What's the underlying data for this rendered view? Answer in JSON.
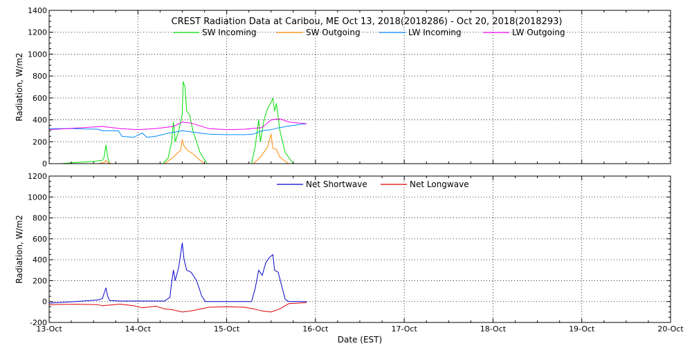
{
  "chart_data": {
    "type": "line",
    "title": "CREST Radiation Data at Caribou, ME   Oct 13, 2018(2018286) - Oct 20, 2018(2018293)",
    "xlabel": "Date (EST)",
    "x_tick_labels": [
      "13-Oct",
      "14-Oct",
      "15-Oct",
      "16-Oct",
      "17-Oct",
      "18-Oct",
      "19-Oct",
      "20-Oct"
    ],
    "xlim": [
      0,
      7
    ],
    "grid": true,
    "panels": [
      {
        "ylabel": "Radiation, W/m2",
        "ylim": [
          0,
          1400
        ],
        "y_ticks": [
          0,
          200,
          400,
          600,
          800,
          1000,
          1200,
          1400
        ],
        "legend_position": "top",
        "series": [
          {
            "name": "SW Incoming",
            "color": "#00dd00",
            "points": [
              [
                0.13,
                0
              ],
              [
                0.3,
                10
              ],
              [
                0.5,
                20
              ],
              [
                0.6,
                30
              ],
              [
                0.62,
                60
              ],
              [
                0.64,
                170
              ],
              [
                0.66,
                60
              ],
              [
                0.68,
                0
              ],
              [
                1.28,
                0
              ],
              [
                1.34,
                50
              ],
              [
                1.38,
                200
              ],
              [
                1.4,
                380
              ],
              [
                1.42,
                200
              ],
              [
                1.46,
                300
              ],
              [
                1.5,
                450
              ],
              [
                1.51,
                750
              ],
              [
                1.53,
                700
              ],
              [
                1.55,
                480
              ],
              [
                1.58,
                450
              ],
              [
                1.62,
                300
              ],
              [
                1.7,
                100
              ],
              [
                1.78,
                0
              ],
              [
                2.28,
                0
              ],
              [
                2.32,
                150
              ],
              [
                2.36,
                400
              ],
              [
                2.38,
                200
              ],
              [
                2.42,
                400
              ],
              [
                2.46,
                500
              ],
              [
                2.5,
                560
              ],
              [
                2.52,
                600
              ],
              [
                2.54,
                480
              ],
              [
                2.56,
                550
              ],
              [
                2.6,
                300
              ],
              [
                2.66,
                100
              ],
              [
                2.75,
                0
              ]
            ]
          },
          {
            "name": "SW Outgoing",
            "color": "#ff8800",
            "points": [
              [
                0.55,
                0
              ],
              [
                0.62,
                10
              ],
              [
                0.64,
                30
              ],
              [
                0.66,
                10
              ],
              [
                0.7,
                0
              ],
              [
                1.3,
                0
              ],
              [
                1.4,
                60
              ],
              [
                1.45,
                100
              ],
              [
                1.48,
                120
              ],
              [
                1.5,
                220
              ],
              [
                1.52,
                160
              ],
              [
                1.56,
                120
              ],
              [
                1.62,
                90
              ],
              [
                1.7,
                30
              ],
              [
                1.75,
                0
              ],
              [
                2.3,
                0
              ],
              [
                2.38,
                60
              ],
              [
                2.46,
                150
              ],
              [
                2.5,
                270
              ],
              [
                2.52,
                140
              ],
              [
                2.56,
                130
              ],
              [
                2.6,
                60
              ],
              [
                2.66,
                20
              ],
              [
                2.7,
                0
              ]
            ]
          },
          {
            "name": "LW Incoming",
            "color": "#0088ff",
            "points": [
              [
                0,
                320
              ],
              [
                0.25,
                320
              ],
              [
                0.55,
                315
              ],
              [
                0.6,
                300
              ],
              [
                0.78,
                300
              ],
              [
                0.82,
                250
              ],
              [
                0.95,
                240
              ],
              [
                1.0,
                260
              ],
              [
                1.05,
                280
              ],
              [
                1.1,
                240
              ],
              [
                1.2,
                250
              ],
              [
                1.35,
                280
              ],
              [
                1.5,
                300
              ],
              [
                1.6,
                290
              ],
              [
                1.8,
                270
              ],
              [
                2.0,
                265
              ],
              [
                2.2,
                265
              ],
              [
                2.3,
                270
              ],
              [
                2.4,
                300
              ],
              [
                2.5,
                310
              ],
              [
                2.6,
                330
              ],
              [
                2.75,
                350
              ],
              [
                2.9,
                365
              ]
            ]
          },
          {
            "name": "LW Outgoing",
            "color": "#ee00ee",
            "points": [
              [
                0,
                310
              ],
              [
                0.2,
                320
              ],
              [
                0.4,
                330
              ],
              [
                0.6,
                340
              ],
              [
                0.8,
                320
              ],
              [
                1.0,
                310
              ],
              [
                1.2,
                320
              ],
              [
                1.4,
                340
              ],
              [
                1.5,
                380
              ],
              [
                1.6,
                370
              ],
              [
                1.8,
                320
              ],
              [
                2.0,
                310
              ],
              [
                2.2,
                315
              ],
              [
                2.4,
                330
              ],
              [
                2.5,
                400
              ],
              [
                2.6,
                410
              ],
              [
                2.7,
                380
              ],
              [
                2.9,
                365
              ]
            ]
          }
        ]
      },
      {
        "ylabel": "Radiation, W/m2",
        "ylim": [
          -200,
          1200
        ],
        "y_ticks": [
          -200,
          0,
          200,
          400,
          600,
          800,
          1000,
          1200
        ],
        "legend_position": "top",
        "series": [
          {
            "name": "Net Shortwave",
            "color": "#0000cc",
            "points": [
              [
                0,
                -15
              ],
              [
                0.3,
                0
              ],
              [
                0.55,
                15
              ],
              [
                0.6,
                30
              ],
              [
                0.62,
                80
              ],
              [
                0.64,
                130
              ],
              [
                0.66,
                50
              ],
              [
                0.68,
                10
              ],
              [
                0.8,
                5
              ],
              [
                1.3,
                5
              ],
              [
                1.36,
                40
              ],
              [
                1.38,
                180
              ],
              [
                1.4,
                300
              ],
              [
                1.42,
                200
              ],
              [
                1.46,
                330
              ],
              [
                1.5,
                560
              ],
              [
                1.52,
                400
              ],
              [
                1.55,
                300
              ],
              [
                1.6,
                280
              ],
              [
                1.66,
                200
              ],
              [
                1.72,
                50
              ],
              [
                1.76,
                0
              ],
              [
                2.28,
                0
              ],
              [
                2.32,
                120
              ],
              [
                2.36,
                300
              ],
              [
                2.4,
                250
              ],
              [
                2.44,
                370
              ],
              [
                2.48,
                420
              ],
              [
                2.52,
                450
              ],
              [
                2.54,
                300
              ],
              [
                2.58,
                280
              ],
              [
                2.62,
                150
              ],
              [
                2.66,
                20
              ],
              [
                2.7,
                0
              ],
              [
                2.9,
                0
              ]
            ]
          },
          {
            "name": "Net Longwave",
            "color": "#dd0000",
            "points": [
              [
                0,
                -30
              ],
              [
                0.3,
                -25
              ],
              [
                0.55,
                -30
              ],
              [
                0.6,
                -40
              ],
              [
                0.8,
                -25
              ],
              [
                0.95,
                -40
              ],
              [
                1.05,
                -60
              ],
              [
                1.2,
                -45
              ],
              [
                1.3,
                -70
              ],
              [
                1.4,
                -80
              ],
              [
                1.5,
                -100
              ],
              [
                1.6,
                -90
              ],
              [
                1.8,
                -55
              ],
              [
                2.0,
                -50
              ],
              [
                2.2,
                -55
              ],
              [
                2.3,
                -70
              ],
              [
                2.4,
                -90
              ],
              [
                2.5,
                -100
              ],
              [
                2.6,
                -70
              ],
              [
                2.7,
                -20
              ],
              [
                2.9,
                -10
              ]
            ]
          }
        ]
      }
    ]
  }
}
